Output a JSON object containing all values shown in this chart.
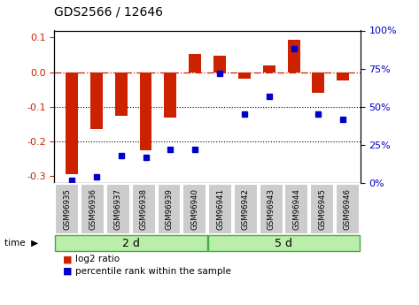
{
  "title": "GDS2566 / 12646",
  "samples": [
    "GSM96935",
    "GSM96936",
    "GSM96937",
    "GSM96938",
    "GSM96939",
    "GSM96940",
    "GSM96941",
    "GSM96942",
    "GSM96943",
    "GSM96944",
    "GSM96945",
    "GSM96946"
  ],
  "log2_ratio": [
    -0.295,
    -0.165,
    -0.125,
    -0.225,
    -0.13,
    0.052,
    0.048,
    -0.02,
    0.02,
    0.092,
    -0.06,
    -0.025
  ],
  "percentile_rank": [
    2,
    4,
    18,
    17,
    22,
    22,
    72,
    45,
    57,
    88,
    45,
    42
  ],
  "bar_color": "#cc2200",
  "dot_color": "#0000cc",
  "group1_label": "2 d",
  "group2_label": "5 d",
  "group1_count": 6,
  "group2_count": 6,
  "ylim_left": [
    -0.32,
    0.12
  ],
  "ylim_right": [
    0,
    100
  ],
  "yticks_left": [
    -0.3,
    -0.2,
    -0.1,
    0.0,
    0.1
  ],
  "yticks_right": [
    0,
    25,
    50,
    75,
    100
  ],
  "hlines": [
    -0.1,
    -0.2
  ],
  "bg_color": "#ffffff",
  "plot_bg": "#ffffff",
  "group_bg": "#bbeeaa",
  "sample_box_color": "#cccccc",
  "legend_bar": "log2 ratio",
  "legend_dot": "percentile rank within the sample"
}
